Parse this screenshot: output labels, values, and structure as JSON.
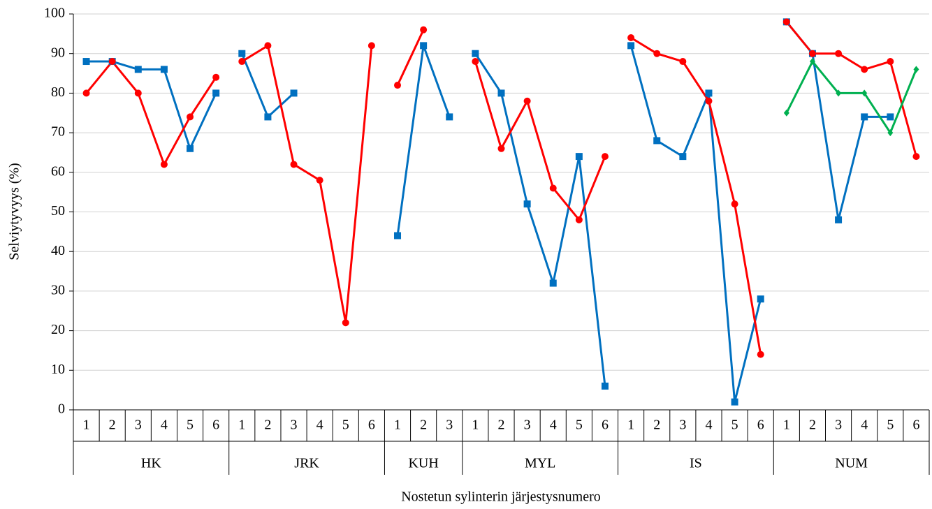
{
  "chart_data": {
    "type": "line",
    "ylabel": "Selviytyvyys (%)",
    "xlabel": "Nostetun sylinterin järjestysnumero",
    "groups": [
      {
        "label": "HK",
        "categories": [
          "1",
          "2",
          "3",
          "4",
          "5",
          "6"
        ]
      },
      {
        "label": "JRK",
        "categories": [
          "1",
          "2",
          "3",
          "4",
          "5",
          "6"
        ]
      },
      {
        "label": "KUH",
        "categories": [
          "1",
          "2",
          "3"
        ]
      },
      {
        "label": "MYL",
        "categories": [
          "1",
          "2",
          "3",
          "4",
          "5",
          "6"
        ]
      },
      {
        "label": "IS",
        "categories": [
          "1",
          "2",
          "3",
          "4",
          "5",
          "6"
        ]
      },
      {
        "label": "NUM",
        "categories": [
          "1",
          "2",
          "3",
          "4",
          "5",
          "6"
        ]
      }
    ],
    "series": [
      {
        "color": "#0070c0",
        "marker": "square",
        "values": [
          [
            88,
            88,
            86,
            86,
            66,
            80
          ],
          [
            90,
            74,
            80,
            null,
            null,
            null
          ],
          [
            44,
            92,
            74
          ],
          [
            90,
            80,
            52,
            32,
            64,
            6
          ],
          [
            92,
            68,
            64,
            80,
            2,
            28
          ],
          [
            98,
            90,
            48,
            74,
            74,
            null
          ]
        ]
      },
      {
        "color": "#ff0000",
        "marker": "circle",
        "values": [
          [
            80,
            88,
            80,
            62,
            74,
            84
          ],
          [
            88,
            92,
            62,
            58,
            22,
            92
          ],
          [
            82,
            96,
            null
          ],
          [
            88,
            66,
            78,
            56,
            48,
            64
          ],
          [
            94,
            90,
            88,
            78,
            52,
            14
          ],
          [
            98,
            90,
            90,
            86,
            88,
            64
          ]
        ]
      },
      {
        "color": "#00b050",
        "marker": "diamond",
        "values": [
          [
            null,
            null,
            null,
            null,
            null,
            null
          ],
          [
            null,
            null,
            null,
            null,
            null,
            null
          ],
          [
            null,
            null,
            null
          ],
          [
            null,
            null,
            null,
            null,
            null,
            null
          ],
          [
            null,
            null,
            null,
            null,
            null,
            null
          ],
          [
            75,
            88,
            80,
            80,
            70,
            86
          ]
        ]
      }
    ],
    "ylim": [
      0,
      100
    ],
    "yticks": [
      0,
      10,
      20,
      30,
      40,
      50,
      60,
      70,
      80,
      90,
      100
    ],
    "grid": true
  }
}
